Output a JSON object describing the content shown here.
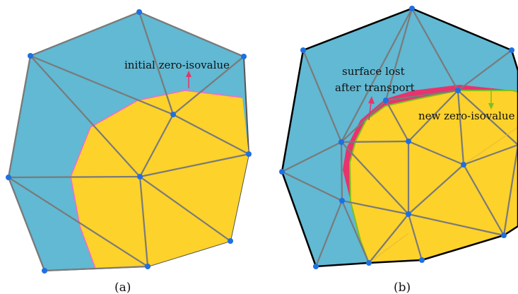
{
  "panels": [
    {
      "caption": "(a)",
      "annotations": [
        "initial zero-isovalue"
      ]
    },
    {
      "caption": "(b)",
      "annotations": [
        "surface lost",
        "after transport",
        "new zero-isovalue"
      ]
    }
  ],
  "colors": {
    "outside_region": "#61b9d3",
    "inside_region": "#fdd22a",
    "lost_surface": "#e8336c",
    "new_isovalue": "#7fbf1f",
    "initial_isovalue": "#ff66cc",
    "mesh_edge": "#7a7a7a",
    "vertex": "#1f6fe0",
    "outline": "#000000"
  }
}
